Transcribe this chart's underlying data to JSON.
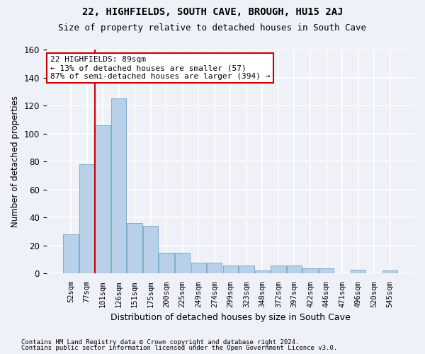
{
  "title1": "22, HIGHFIELDS, SOUTH CAVE, BROUGH, HU15 2AJ",
  "title2": "Size of property relative to detached houses in South Cave",
  "xlabel": "Distribution of detached houses by size in South Cave",
  "ylabel": "Number of detached properties",
  "bar_values": [
    28,
    78,
    106,
    125,
    36,
    34,
    15,
    15,
    8,
    8,
    6,
    6,
    2,
    6,
    6,
    4,
    4,
    0,
    3,
    0,
    2
  ],
  "bar_labels": [
    "52sqm",
    "77sqm",
    "101sqm",
    "126sqm",
    "151sqm",
    "175sqm",
    "200sqm",
    "225sqm",
    "249sqm",
    "274sqm",
    "299sqm",
    "323sqm",
    "348sqm",
    "372sqm",
    "397sqm",
    "422sqm",
    "446sqm",
    "471sqm",
    "496sqm",
    "520sqm",
    "545sqm"
  ],
  "bar_color": "#b8d0e8",
  "bar_edge_color": "#7aaed0",
  "ylim": [
    0,
    160
  ],
  "yticks": [
    0,
    20,
    40,
    60,
    80,
    100,
    120,
    140,
    160
  ],
  "vline_color": "#cc0000",
  "ann_line1": "22 HIGHFIELDS: 89sqm",
  "ann_line2": "← 13% of detached houses are smaller (57)",
  "ann_line3": "87% of semi-detached houses are larger (394) →",
  "footnote1": "Contains HM Land Registry data © Crown copyright and database right 2024.",
  "footnote2": "Contains public sector information licensed under the Open Government Licence v3.0.",
  "background_color": "#eef2f8",
  "grid_color": "#ffffff",
  "bar_width": 0.95
}
